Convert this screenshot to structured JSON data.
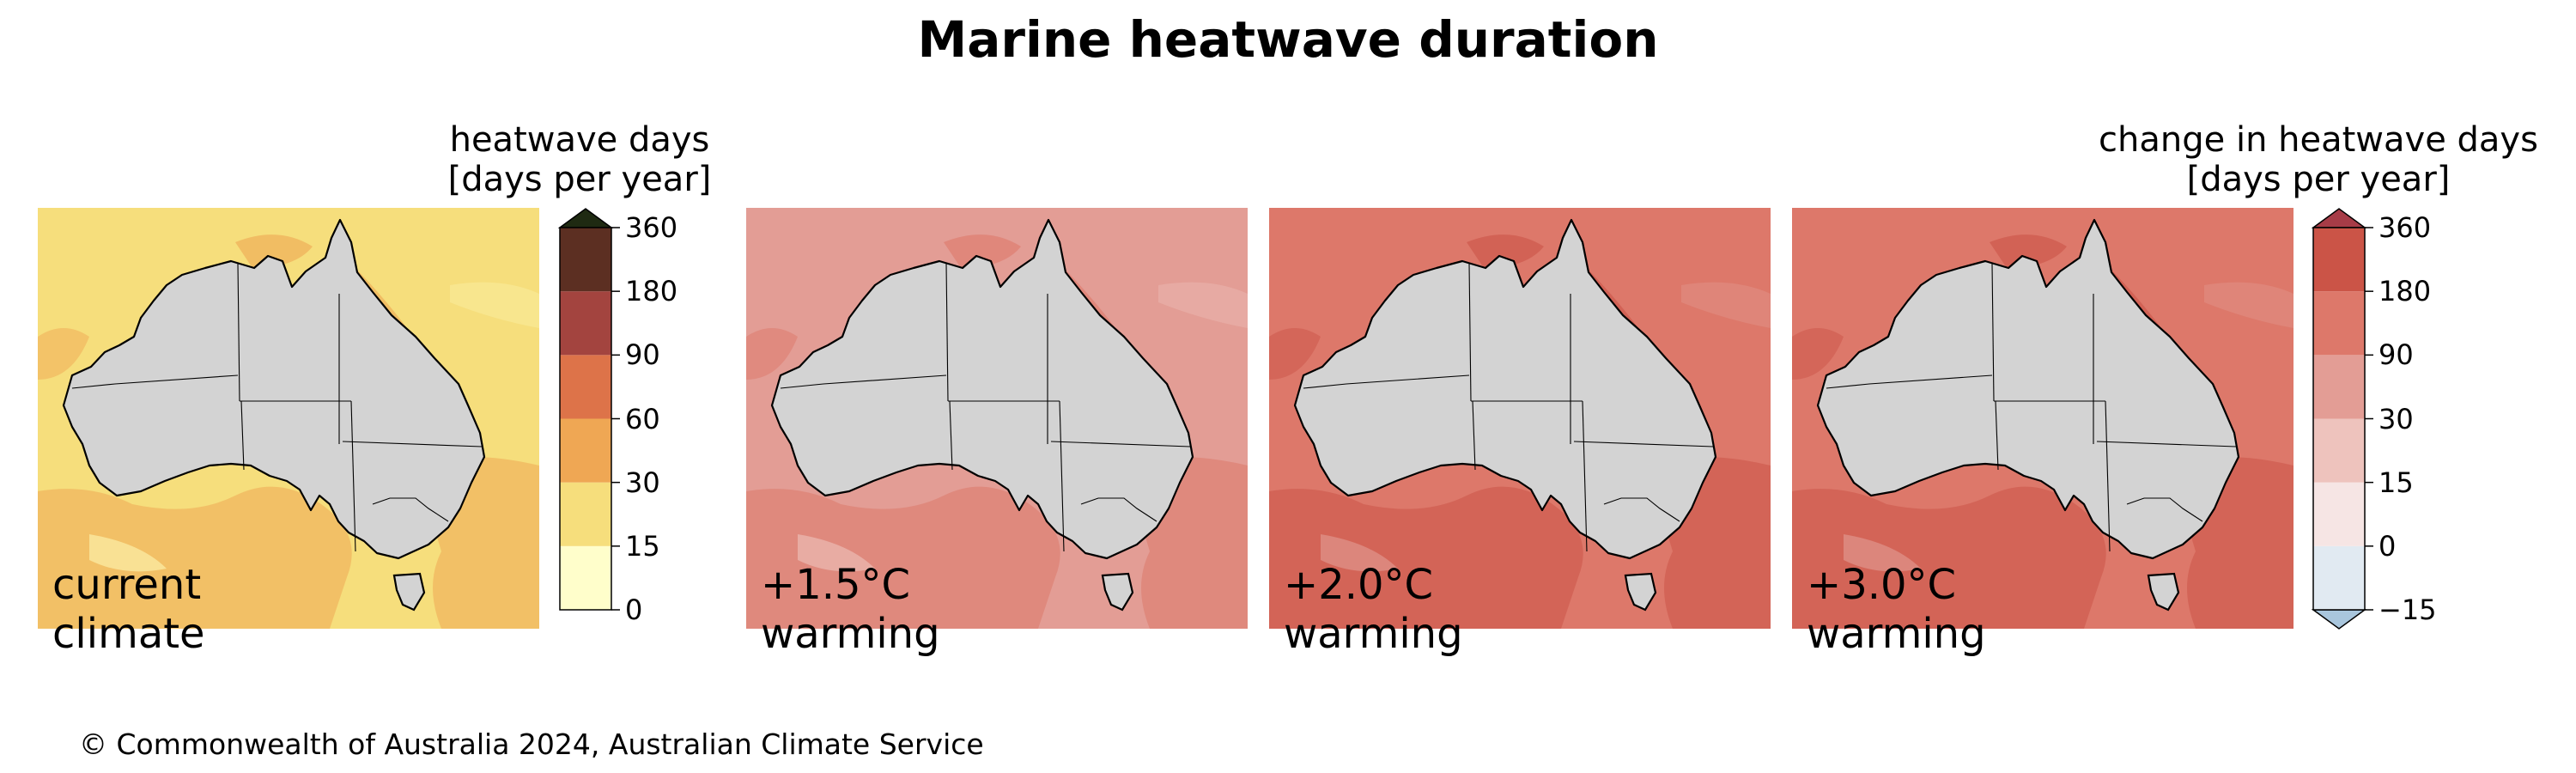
{
  "title": "Marine heatwave duration",
  "copyright": "© Commonwealth of Australia 2024, Australian Climate Service",
  "panels": [
    {
      "label_line1": "current",
      "label_line2": "climate",
      "ocean_color": "#f6de7c",
      "secondary_color": "#efa754",
      "tertiary_color": "#fdf6b3"
    },
    {
      "label_line1": "+1.5°C",
      "label_line2": "warming",
      "ocean_color": "#e39d95",
      "secondary_color": "#dd786a",
      "tertiary_color": "#eec3bd"
    },
    {
      "label_line1": "+2.0°C",
      "label_line2": "warming",
      "ocean_color": "#dd786a",
      "secondary_color": "#cb5447",
      "tertiary_color": "#e39d95"
    },
    {
      "label_line1": "+3.0°C",
      "label_line2": "warming",
      "ocean_color": "#dd786a",
      "secondary_color": "#cb5447",
      "tertiary_color": "#e39d95"
    }
  ],
  "land_color": "#d3d3d3",
  "colorbars": [
    {
      "title_line1": "heatwave days",
      "title_line2": "[days per year]",
      "ticks": [
        "0",
        "15",
        "30",
        "60",
        "90",
        "180",
        "360"
      ],
      "colors": [
        "#fffecb",
        "#f6de7c",
        "#efa754",
        "#dd7349",
        "#a3443f",
        "#5c2f22"
      ],
      "extend_color": "#1f2a12",
      "extend": "max"
    },
    {
      "title_line1": "change in heatwave days",
      "title_line2": "[days per year]",
      "ticks": [
        "−15",
        "0",
        "15",
        "30",
        "90",
        "180",
        "360"
      ],
      "colors": [
        "#e1eaf2",
        "#f6e5e4",
        "#eec3bd",
        "#e39d95",
        "#dd786a",
        "#cb5447"
      ],
      "extend_low_color": "#a9c6dd",
      "extend_high_color": "#a73c47",
      "extend": "both"
    }
  ]
}
